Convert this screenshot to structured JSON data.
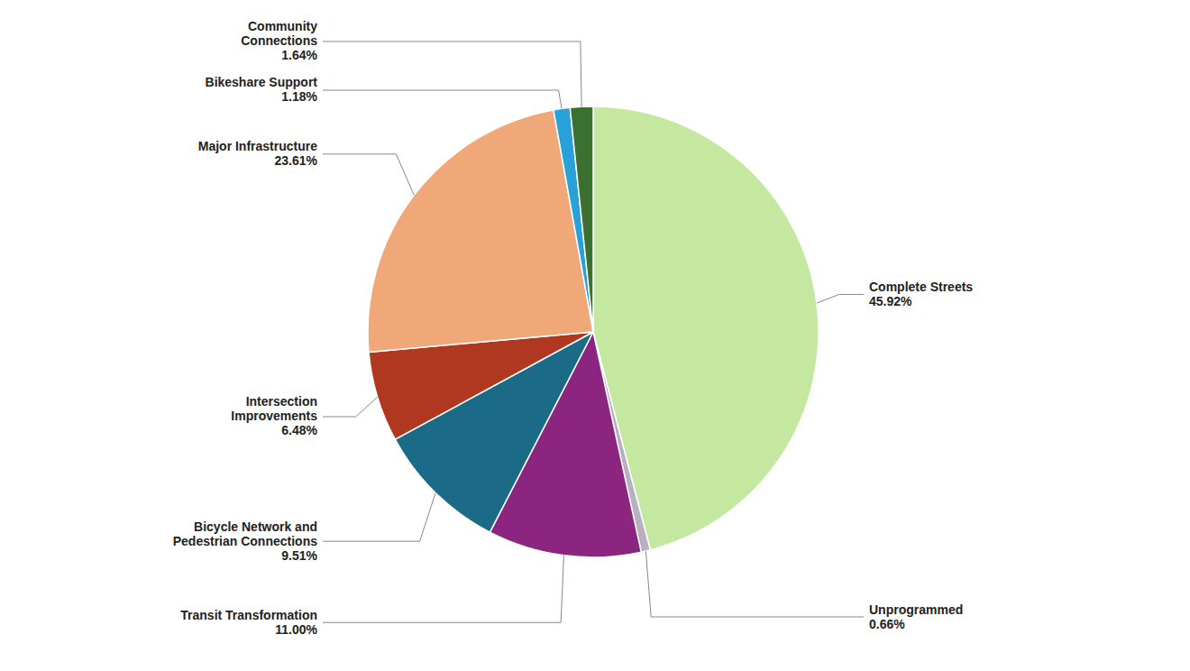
{
  "chart_data": {
    "type": "pie",
    "categories": [
      "Complete Streets",
      "Unprogrammed",
      "Transit Transformation",
      "Bicycle Network and\nPedestrian Connections",
      "Intersection\nImprovements",
      "Major Infrastructure",
      "Bikeshare Support",
      "Community\nConnections"
    ],
    "values": [
      45.92,
      0.66,
      11.0,
      9.51,
      6.48,
      23.61,
      1.18,
      1.64
    ],
    "value_labels": [
      "45.92%",
      "0.66%",
      "11.00%",
      "9.51%",
      "6.48%",
      "23.61%",
      "1.18%",
      "1.64%"
    ],
    "colors": [
      "#c5e8a0",
      "#b8b0c0",
      "#8b2580",
      "#1a6a88",
      "#b03820",
      "#f0a878",
      "#28a0d8",
      "#3a7030"
    ],
    "data_labels": true
  }
}
